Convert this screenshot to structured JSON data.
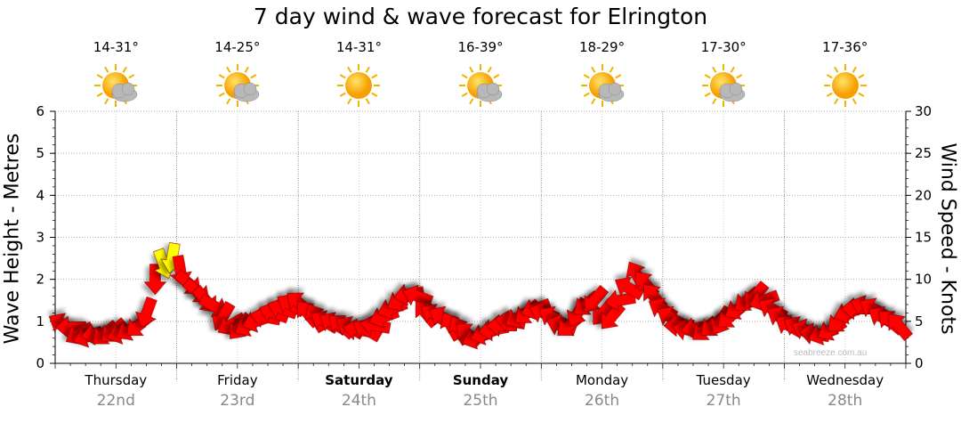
{
  "title": "7 day wind & wave forecast for Elrington",
  "watermark": "seabreeze.com.au",
  "colors": {
    "wind_arrow": "#ff0000",
    "wind_arrow_strong": "#ffff00",
    "grid": "#b0b0b0"
  },
  "days": [
    {
      "name": "Thursday",
      "date": "22nd",
      "temp": "14-31°",
      "weather_icon": "partly-cloudy-icon",
      "bold": false
    },
    {
      "name": "Friday",
      "date": "23rd",
      "temp": "14-25°",
      "weather_icon": "partly-cloudy-icon",
      "bold": false
    },
    {
      "name": "Saturday",
      "date": "24th",
      "temp": "14-31°",
      "weather_icon": "sunny-icon",
      "bold": true
    },
    {
      "name": "Sunday",
      "date": "25th",
      "temp": "16-39°",
      "weather_icon": "partly-cloudy-icon",
      "bold": true
    },
    {
      "name": "Monday",
      "date": "26th",
      "temp": "18-29°",
      "weather_icon": "partly-cloudy-icon",
      "bold": false
    },
    {
      "name": "Tuesday",
      "date": "27th",
      "temp": "17-30°",
      "weather_icon": "partly-cloudy-icon",
      "bold": false
    },
    {
      "name": "Wednesday",
      "date": "28th",
      "temp": "17-36°",
      "weather_icon": "sunny-icon",
      "bold": false
    }
  ],
  "chart_data": {
    "type": "line",
    "title": "7 day wind & wave forecast for Elrington",
    "ylabel_left": "Wave Height - Metres",
    "ylabel_right": "Wind Speed - Knots",
    "ylim_left": [
      0,
      6
    ],
    "ylim_right": [
      0,
      30
    ],
    "yticks_left": [
      "0",
      "1",
      "2",
      "3",
      "4",
      "5",
      "6"
    ],
    "yticks_right": [
      "0",
      "5",
      "10",
      "15",
      "20",
      "25",
      "30"
    ],
    "grid": true,
    "categories": [
      "Thursday 22nd",
      "Friday 23rd",
      "Saturday 24th",
      "Sunday 25th",
      "Monday 26th",
      "Tuesday 27th",
      "Wednesday 28th"
    ],
    "series": [
      {
        "values_knots": [
          4.7,
          4.3,
          3.5,
          3.2,
          3.5,
          3.5,
          3.8,
          3.6,
          4.0,
          4.5,
          6.0,
          10.0,
          11.8,
          12.5,
          11.0,
          9.5,
          8.5,
          7.5,
          6.8,
          5.5,
          4.6,
          4.3,
          4.5,
          5.0,
          5.5,
          6.0,
          6.5,
          7.0,
          7.2,
          6.0,
          5.5,
          5.0,
          4.8,
          4.5,
          4.3,
          4.0,
          4.0,
          4.5,
          5.5,
          6.5,
          7.5,
          8.2,
          8.0,
          6.0,
          5.8,
          5.5,
          4.5,
          4.0,
          3.5,
          3.0,
          3.5,
          4.0,
          4.5,
          5.0,
          5.5,
          6.0,
          6.5,
          6.0,
          5.5,
          4.5,
          4.5,
          6.0,
          7.0,
          7.5,
          6.0,
          5.5,
          7.5,
          9.0,
          10.5,
          9.5,
          8.0,
          6.5,
          5.5,
          4.5,
          4.0,
          4.2,
          4.0,
          4.5,
          5.0,
          5.5,
          6.5,
          7.5,
          8.0,
          7.5,
          6.5,
          5.5,
          4.5,
          4.3,
          4.0,
          3.5,
          3.5,
          4.0,
          5.0,
          6.0,
          6.5,
          6.8,
          6.5,
          5.5,
          5.0,
          4.5
        ],
        "arrow_kind": [
          "r",
          "r",
          "r",
          "r",
          "r",
          "r",
          "r",
          "r",
          "r",
          "r",
          "r",
          "r",
          "y",
          "y",
          "r",
          "r",
          "r",
          "r",
          "r",
          "r",
          "r",
          "r",
          "r",
          "r",
          "r",
          "r",
          "r",
          "r",
          "r",
          "r",
          "r",
          "r",
          "r",
          "r",
          "r",
          "r",
          "r",
          "r",
          "r",
          "r",
          "r",
          "r",
          "r",
          "r",
          "r",
          "r",
          "r",
          "r",
          "r",
          "r",
          "r",
          "r",
          "r",
          "r",
          "r",
          "r",
          "r",
          "r",
          "r",
          "r",
          "r",
          "r",
          "r",
          "r",
          "r",
          "r",
          "r",
          "r",
          "r",
          "r",
          "r",
          "r",
          "r",
          "r",
          "r",
          "r",
          "r",
          "r",
          "r",
          "r",
          "r",
          "r",
          "r",
          "r",
          "r",
          "r",
          "r",
          "r",
          "r",
          "r",
          "r",
          "r",
          "r",
          "r",
          "r",
          "r",
          "r",
          "r",
          "r",
          "r"
        ],
        "direction_deg": [
          300,
          270,
          240,
          250,
          260,
          230,
          230,
          250,
          240,
          230,
          200,
          180,
          160,
          190,
          170,
          130,
          130,
          140,
          120,
          210,
          240,
          220,
          240,
          250,
          280,
          290,
          290,
          300,
          310,
          320,
          330,
          300,
          300,
          310,
          300,
          280,
          300,
          280,
          250,
          250,
          240,
          260,
          290,
          320,
          300,
          300,
          330,
          330,
          310,
          250,
          250,
          260,
          270,
          280,
          240,
          230,
          250,
          290,
          300,
          290,
          230,
          210,
          230,
          220,
          220,
          220,
          260,
          300,
          330,
          320,
          320,
          300,
          300,
          270,
          280,
          260,
          230,
          230,
          210,
          230,
          240,
          230,
          220,
          250,
          300,
          300,
          300,
          300,
          290,
          280,
          250,
          240,
          230,
          250,
          270,
          290,
          300,
          300,
          310,
          320
        ]
      }
    ]
  }
}
